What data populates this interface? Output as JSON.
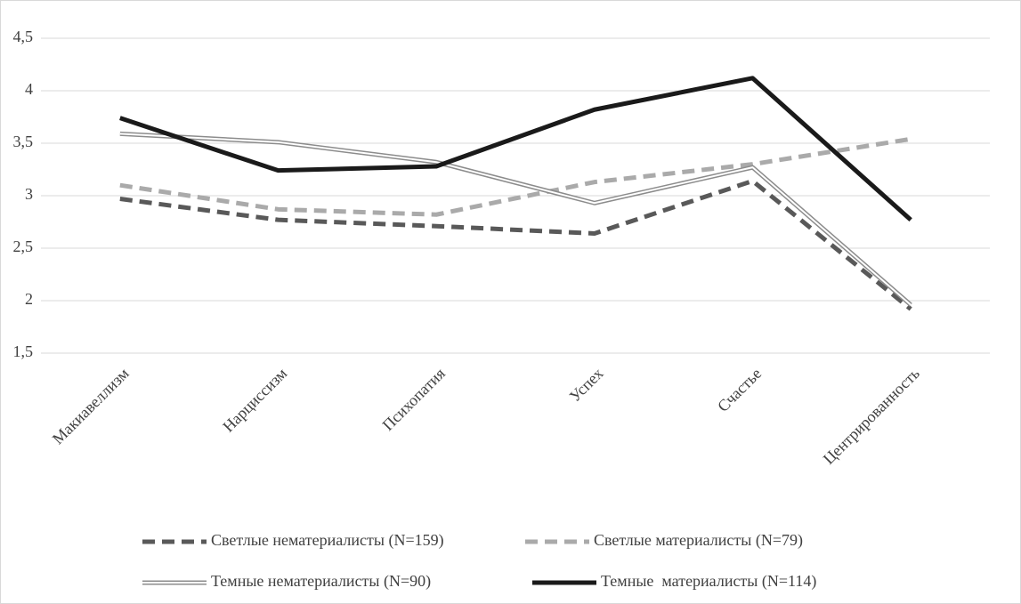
{
  "chart_data": {
    "type": "line",
    "categories": [
      "Макиавеллизм",
      "Нарциссизм",
      "Психопатия",
      "Успех",
      "Счастье",
      "Центрированность"
    ],
    "series": [
      {
        "name": "Светлые нематериалисты (N=159)",
        "color": "#595959",
        "style": "dashed",
        "values": [
          2.97,
          2.77,
          2.71,
          2.64,
          3.14,
          1.92
        ]
      },
      {
        "name": "Светлые материалисты (N=79)",
        "color": "#aaaaaa",
        "style": "dashed",
        "values": [
          3.1,
          2.87,
          2.82,
          3.13,
          3.3,
          3.54
        ]
      },
      {
        "name": "Темные нематериалисты (N=90)",
        "color": "#8c8c8c",
        "style": "double",
        "values": [
          3.59,
          3.51,
          3.32,
          2.93,
          3.27,
          1.96
        ]
      },
      {
        "name": "Темные  материалисты (N=114)",
        "color": "#1a1a1a",
        "style": "solid",
        "values": [
          3.74,
          3.24,
          3.28,
          3.82,
          4.12,
          2.77
        ]
      }
    ],
    "ylim": [
      1.5,
      4.5
    ],
    "yticks": [
      {
        "value": 1.5,
        "label": "1,5"
      },
      2,
      {
        "value": 2.5,
        "label": "2,5"
      },
      3,
      {
        "value": 3.5,
        "label": "3,5"
      },
      4,
      {
        "value": 4.5,
        "label": "4,5"
      }
    ],
    "grid": true,
    "legend": "bottom"
  }
}
